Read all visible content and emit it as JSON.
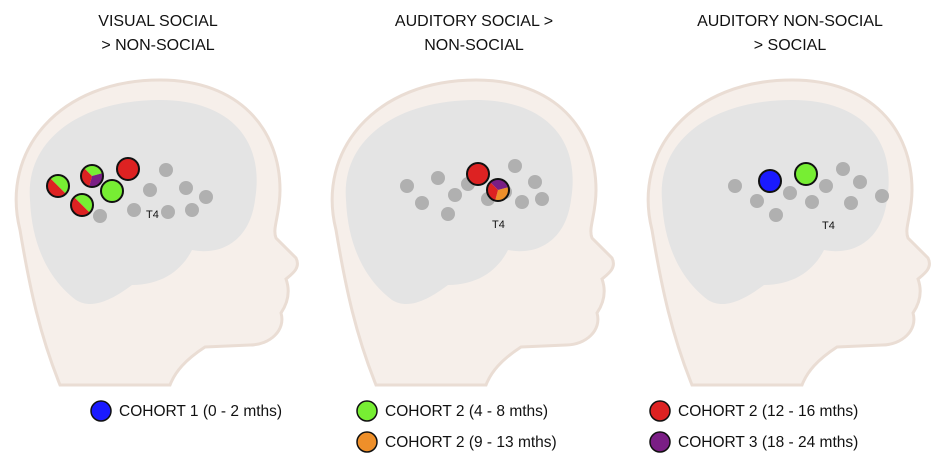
{
  "panels": [
    {
      "title_lines": [
        "VISUAL SOCIAL",
        "> NON-SOCIAL"
      ],
      "electrode_label": "T4"
    },
    {
      "title_lines": [
        "AUDITORY SOCIAL >",
        "NON-SOCIAL"
      ],
      "electrode_label": "T4"
    },
    {
      "title_lines": [
        "AUDITORY NON-SOCIAL",
        "> SOCIAL"
      ],
      "electrode_label": "T4"
    }
  ],
  "legend": [
    {
      "label": "COHORT 1 (0 - 2 mths)",
      "color": "#1a1aff"
    },
    {
      "label": "COHORT 2 (4 - 8 mths)",
      "color": "#77ee33"
    },
    {
      "label": "COHORT 2 (12 - 16 mths)",
      "color": "#dd2222"
    },
    {
      "label": "COHORT 2 (9 - 13 mths)",
      "color": "#ee8f2a"
    },
    {
      "label": "COHORT 3 (18 - 24 mths)",
      "color": "#7a1e85"
    }
  ]
}
